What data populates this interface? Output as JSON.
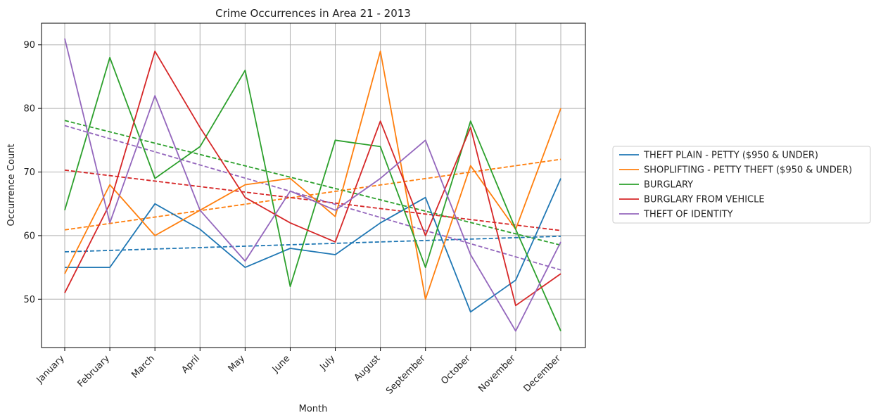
{
  "chart_data": {
    "type": "line",
    "title": "Crime Occurrences in Area 21 - 2013",
    "xlabel": "Month",
    "ylabel": "Occurrence Count",
    "categories": [
      "January",
      "February",
      "March",
      "April",
      "May",
      "June",
      "July",
      "August",
      "September",
      "October",
      "November",
      "December"
    ],
    "ylim": [
      42.4,
      93.4
    ],
    "yticks": [
      50,
      60,
      70,
      80,
      90
    ],
    "grid": true,
    "legend_position": "right",
    "series": [
      {
        "name": "THEFT PLAIN - PETTY ($950 & UNDER)",
        "color": "#1f77b4",
        "values": [
          55,
          55,
          65,
          61,
          55,
          58,
          57,
          62,
          66,
          48,
          53,
          69
        ],
        "trend": [
          57.45,
          59.9
        ]
      },
      {
        "name": "SHOPLIFTING - PETTY THEFT ($950 & UNDER)",
        "color": "#ff7f0e",
        "values": [
          54,
          68,
          60,
          64,
          68,
          69,
          63,
          89,
          50,
          71,
          61,
          80
        ],
        "trend": [
          60.9,
          72.0
        ]
      },
      {
        "name": "BURGLARY",
        "color": "#2ca02c",
        "values": [
          64,
          88,
          69,
          74,
          86,
          52,
          75,
          74,
          55,
          78,
          61,
          45
        ],
        "trend": [
          78.1,
          58.5
        ]
      },
      {
        "name": "BURGLARY FROM VEHICLE",
        "color": "#d62728",
        "values": [
          51,
          65,
          89,
          77,
          66,
          62,
          59,
          78,
          60,
          77,
          49,
          54
        ],
        "trend": [
          70.3,
          60.8
        ]
      },
      {
        "name": "THEFT OF IDENTITY",
        "color": "#9467bd",
        "values": [
          91,
          62,
          82,
          64,
          56,
          67,
          64,
          69,
          75,
          57,
          45,
          59
        ],
        "trend": [
          77.3,
          54.6
        ]
      }
    ]
  }
}
